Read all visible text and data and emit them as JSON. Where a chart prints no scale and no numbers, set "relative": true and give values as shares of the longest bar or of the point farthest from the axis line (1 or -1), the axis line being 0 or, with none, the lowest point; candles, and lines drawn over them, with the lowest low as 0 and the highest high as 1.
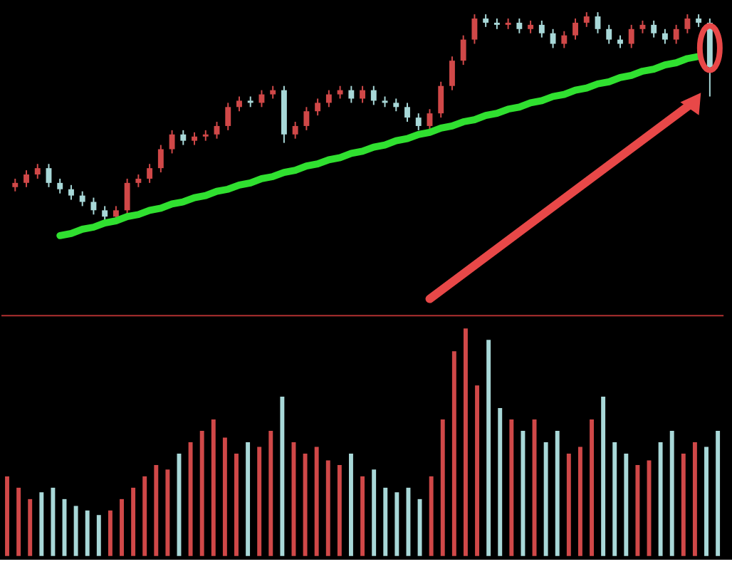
{
  "chart_data": [
    {
      "type": "candlestick",
      "relative": true,
      "tick_labels": false,
      "categories": [
        null,
        null,
        null,
        null,
        null,
        null,
        null,
        null,
        null,
        null,
        null,
        null,
        null,
        null,
        null,
        null,
        null,
        null,
        null,
        null,
        null,
        null,
        null,
        null,
        null,
        null,
        null,
        null,
        null,
        null,
        null,
        null,
        null,
        null,
        null,
        null,
        null,
        null,
        null,
        null,
        null,
        null,
        null,
        null,
        null,
        null,
        null,
        null,
        null,
        null,
        null,
        null,
        null,
        null,
        null,
        null,
        null,
        null,
        null,
        null,
        null,
        null,
        null
      ],
      "ohlc": [
        [
          0.17,
          0.21,
          0.15,
          0.19
        ],
        [
          0.19,
          0.25,
          0.17,
          0.23
        ],
        [
          0.23,
          0.28,
          0.21,
          0.26
        ],
        [
          0.26,
          0.28,
          0.17,
          0.19
        ],
        [
          0.19,
          0.21,
          0.14,
          0.16
        ],
        [
          0.16,
          0.18,
          0.11,
          0.13
        ],
        [
          0.13,
          0.15,
          0.08,
          0.1
        ],
        [
          0.1,
          0.12,
          0.04,
          0.06
        ],
        [
          0.06,
          0.08,
          0.0,
          0.03
        ],
        [
          0.03,
          0.08,
          0.01,
          0.06
        ],
        [
          0.06,
          0.21,
          0.04,
          0.19
        ],
        [
          0.19,
          0.23,
          0.17,
          0.21
        ],
        [
          0.21,
          0.28,
          0.19,
          0.26
        ],
        [
          0.26,
          0.37,
          0.24,
          0.35
        ],
        [
          0.35,
          0.44,
          0.33,
          0.42
        ],
        [
          0.42,
          0.44,
          0.37,
          0.39
        ],
        [
          0.39,
          0.43,
          0.37,
          0.41
        ],
        [
          0.41,
          0.44,
          0.39,
          0.42
        ],
        [
          0.42,
          0.48,
          0.4,
          0.46
        ],
        [
          0.46,
          0.57,
          0.44,
          0.55
        ],
        [
          0.55,
          0.6,
          0.53,
          0.58
        ],
        [
          0.58,
          0.6,
          0.55,
          0.57
        ],
        [
          0.57,
          0.63,
          0.55,
          0.61
        ],
        [
          0.61,
          0.65,
          0.59,
          0.63
        ],
        [
          0.63,
          0.65,
          0.38,
          0.42
        ],
        [
          0.42,
          0.48,
          0.4,
          0.46
        ],
        [
          0.46,
          0.55,
          0.44,
          0.53
        ],
        [
          0.53,
          0.59,
          0.51,
          0.57
        ],
        [
          0.57,
          0.63,
          0.55,
          0.61
        ],
        [
          0.61,
          0.65,
          0.59,
          0.63
        ],
        [
          0.63,
          0.65,
          0.57,
          0.59
        ],
        [
          0.59,
          0.65,
          0.57,
          0.63
        ],
        [
          0.63,
          0.65,
          0.56,
          0.58
        ],
        [
          0.58,
          0.6,
          0.55,
          0.57
        ],
        [
          0.57,
          0.59,
          0.53,
          0.55
        ],
        [
          0.55,
          0.57,
          0.48,
          0.5
        ],
        [
          0.5,
          0.52,
          0.44,
          0.46
        ],
        [
          0.46,
          0.54,
          0.44,
          0.52
        ],
        [
          0.52,
          0.67,
          0.5,
          0.65
        ],
        [
          0.65,
          0.79,
          0.63,
          0.77
        ],
        [
          0.77,
          0.89,
          0.75,
          0.87
        ],
        [
          0.87,
          0.99,
          0.85,
          0.97
        ],
        [
          0.97,
          0.99,
          0.93,
          0.95
        ],
        [
          0.95,
          0.97,
          0.92,
          0.94
        ],
        [
          0.94,
          0.97,
          0.92,
          0.95
        ],
        [
          0.95,
          0.97,
          0.9,
          0.92
        ],
        [
          0.92,
          0.96,
          0.9,
          0.94
        ],
        [
          0.94,
          0.96,
          0.88,
          0.9
        ],
        [
          0.9,
          0.92,
          0.83,
          0.85
        ],
        [
          0.85,
          0.91,
          0.83,
          0.89
        ],
        [
          0.89,
          0.97,
          0.87,
          0.95
        ],
        [
          0.95,
          1.0,
          0.93,
          0.98
        ],
        [
          0.98,
          1.0,
          0.9,
          0.92
        ],
        [
          0.92,
          0.94,
          0.85,
          0.87
        ],
        [
          0.87,
          0.89,
          0.83,
          0.85
        ],
        [
          0.85,
          0.94,
          0.83,
          0.92
        ],
        [
          0.92,
          0.96,
          0.9,
          0.94
        ],
        [
          0.94,
          0.96,
          0.88,
          0.9
        ],
        [
          0.9,
          0.92,
          0.85,
          0.87
        ],
        [
          0.87,
          0.94,
          0.85,
          0.92
        ],
        [
          0.92,
          0.99,
          0.9,
          0.97
        ],
        [
          0.97,
          0.99,
          0.93,
          0.95
        ],
        [
          0.95,
          0.97,
          0.6,
          0.74
        ]
      ],
      "colors": [
        "#d04848",
        "#d04848",
        "#d04848",
        "#a8d8d8",
        "#a8d8d8",
        "#a8d8d8",
        "#a8d8d8",
        "#a8d8d8",
        "#a8d8d8",
        "#d04848",
        "#d04848",
        "#d04848",
        "#d04848",
        "#d04848",
        "#d04848",
        "#a8d8d8",
        "#d04848",
        "#d04848",
        "#d04848",
        "#d04848",
        "#d04848",
        "#a8d8d8",
        "#d04848",
        "#d04848",
        "#a8d8d8",
        "#d04848",
        "#d04848",
        "#d04848",
        "#d04848",
        "#d04848",
        "#a8d8d8",
        "#d04848",
        "#a8d8d8",
        "#a8d8d8",
        "#a8d8d8",
        "#a8d8d8",
        "#a8d8d8",
        "#d04848",
        "#d04848",
        "#d04848",
        "#d04848",
        "#d04848",
        "#a8d8d8",
        "#a8d8d8",
        "#d04848",
        "#a8d8d8",
        "#d04848",
        "#a8d8d8",
        "#a8d8d8",
        "#d04848",
        "#d04848",
        "#d04848",
        "#a8d8d8",
        "#a8d8d8",
        "#a8d8d8",
        "#d04848",
        "#d04848",
        "#a8d8d8",
        "#a8d8d8",
        "#d04848",
        "#d04848",
        "#a8d8d8",
        "#a8d8d8"
      ],
      "series": [
        {
          "type": "line",
          "color": "#30e030",
          "values": [
            null,
            null,
            null,
            null,
            -0.06,
            -0.05,
            -0.03,
            -0.02,
            0.0,
            0.01,
            0.03,
            0.04,
            0.06,
            0.07,
            0.09,
            0.1,
            0.12,
            0.13,
            0.15,
            0.16,
            0.18,
            0.19,
            0.21,
            0.22,
            0.24,
            0.25,
            0.27,
            0.28,
            0.3,
            0.31,
            0.33,
            0.34,
            0.36,
            0.37,
            0.39,
            0.4,
            0.42,
            0.43,
            0.45,
            0.46,
            0.48,
            0.49,
            0.51,
            0.52,
            0.54,
            0.55,
            0.57,
            0.58,
            0.6,
            0.61,
            0.63,
            0.64,
            0.66,
            0.67,
            0.69,
            0.7,
            0.72,
            0.73,
            0.75,
            0.76,
            0.78,
            0.79,
            null
          ]
        }
      ]
    },
    {
      "type": "bar",
      "relative": true,
      "tick_labels": false,
      "categories": [
        null,
        null,
        null,
        null,
        null,
        null,
        null,
        null,
        null,
        null,
        null,
        null,
        null,
        null,
        null,
        null,
        null,
        null,
        null,
        null,
        null,
        null,
        null,
        null,
        null,
        null,
        null,
        null,
        null,
        null,
        null,
        null,
        null,
        null,
        null,
        null,
        null,
        null,
        null,
        null,
        null,
        null,
        null,
        null,
        null,
        null,
        null,
        null,
        null,
        null,
        null,
        null,
        null,
        null,
        null,
        null,
        null,
        null,
        null,
        null,
        null,
        null,
        null
      ],
      "values": [
        0.35,
        0.3,
        0.25,
        0.28,
        0.3,
        0.25,
        0.22,
        0.2,
        0.18,
        0.2,
        0.25,
        0.3,
        0.35,
        0.4,
        0.38,
        0.45,
        0.5,
        0.55,
        0.6,
        0.52,
        0.45,
        0.5,
        0.48,
        0.55,
        0.7,
        0.5,
        0.45,
        0.48,
        0.42,
        0.4,
        0.45,
        0.35,
        0.38,
        0.3,
        0.28,
        0.3,
        0.25,
        0.35,
        0.6,
        0.9,
        1.0,
        0.75,
        0.95,
        0.65,
        0.6,
        0.55,
        0.6,
        0.5,
        0.55,
        0.45,
        0.48,
        0.6,
        0.7,
        0.5,
        0.45,
        0.4,
        0.42,
        0.5,
        0.55,
        0.45,
        0.5,
        0.48,
        0.55
      ],
      "colors": [
        "#d04848",
        "#d04848",
        "#d04848",
        "#a8d8d8",
        "#a8d8d8",
        "#a8d8d8",
        "#a8d8d8",
        "#a8d8d8",
        "#a8d8d8",
        "#d04848",
        "#d04848",
        "#d04848",
        "#d04848",
        "#d04848",
        "#d04848",
        "#a8d8d8",
        "#d04848",
        "#d04848",
        "#d04848",
        "#d04848",
        "#d04848",
        "#a8d8d8",
        "#d04848",
        "#d04848",
        "#a8d8d8",
        "#d04848",
        "#d04848",
        "#d04848",
        "#d04848",
        "#d04848",
        "#a8d8d8",
        "#d04848",
        "#a8d8d8",
        "#a8d8d8",
        "#a8d8d8",
        "#a8d8d8",
        "#a8d8d8",
        "#d04848",
        "#d04848",
        "#d04848",
        "#d04848",
        "#d04848",
        "#a8d8d8",
        "#a8d8d8",
        "#d04848",
        "#a8d8d8",
        "#d04848",
        "#a8d8d8",
        "#a8d8d8",
        "#d04848",
        "#d04848",
        "#d04848",
        "#a8d8d8",
        "#a8d8d8",
        "#a8d8d8",
        "#d04848",
        "#d04848",
        "#a8d8d8",
        "#a8d8d8",
        "#d04848",
        "#d04848",
        "#a8d8d8",
        "#a8d8d8"
      ]
    }
  ]
}
